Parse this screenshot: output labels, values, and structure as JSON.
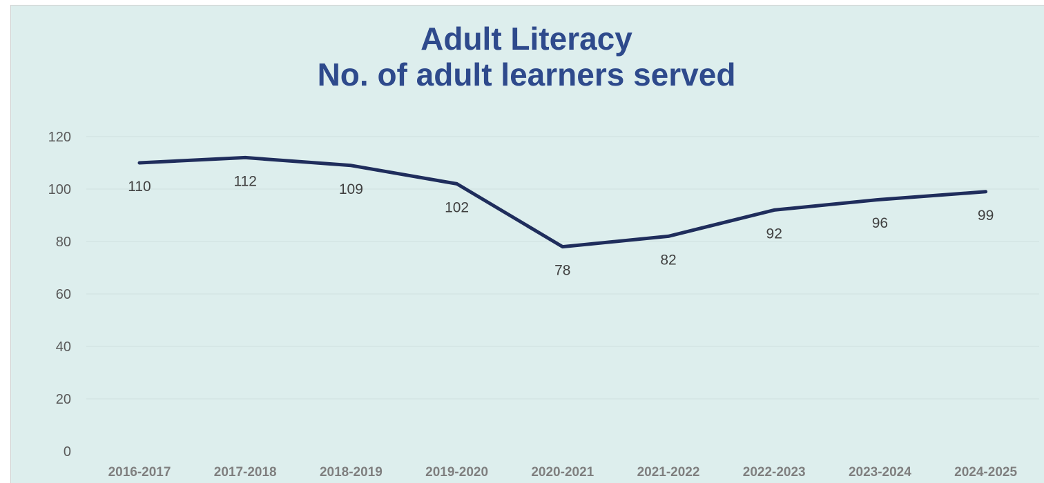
{
  "chart_data": {
    "type": "line",
    "title": "Adult Literacy",
    "subtitle": "No. of adult learners served",
    "categories": [
      "2016-2017",
      "2017-2018",
      "2018-2019",
      "2019-2020",
      "2020-2021",
      "2021-2022",
      "2022-2023",
      "2023-2024",
      "2024-2025"
    ],
    "series": [
      {
        "values": [
          110,
          112,
          109,
          102,
          78,
          82,
          92,
          96,
          99
        ]
      }
    ],
    "ylim": [
      0,
      120
    ],
    "yticks": [
      "0",
      "20",
      "40",
      "60",
      "80",
      "100",
      "120"
    ],
    "grid": true,
    "legend": "none",
    "colors": {
      "line": "#1f2d5c",
      "title": "#2e4a8c",
      "background": "#ddeeed",
      "gridline": "#cfe0df",
      "tick_label": "#595959",
      "category_label": "#7f7f7f",
      "data_label": "#404040"
    }
  }
}
